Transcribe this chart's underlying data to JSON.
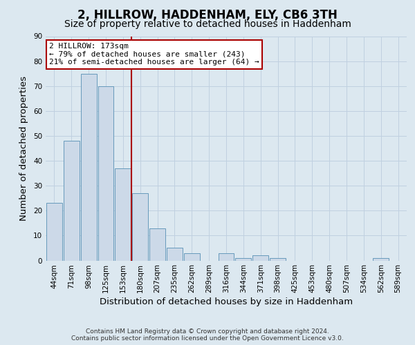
{
  "title": "2, HILLROW, HADDENHAM, ELY, CB6 3TH",
  "subtitle": "Size of property relative to detached houses in Haddenham",
  "xlabel": "Distribution of detached houses by size in Haddenham",
  "ylabel": "Number of detached properties",
  "bar_labels": [
    "44sqm",
    "71sqm",
    "98sqm",
    "125sqm",
    "153sqm",
    "180sqm",
    "207sqm",
    "235sqm",
    "262sqm",
    "289sqm",
    "316sqm",
    "344sqm",
    "371sqm",
    "398sqm",
    "425sqm",
    "453sqm",
    "480sqm",
    "507sqm",
    "534sqm",
    "562sqm",
    "589sqm"
  ],
  "bar_values": [
    23,
    48,
    75,
    70,
    37,
    27,
    13,
    5,
    3,
    0,
    3,
    1,
    2,
    1,
    0,
    0,
    0,
    0,
    0,
    1,
    0
  ],
  "bar_color": "#ccd9e8",
  "bar_edge_color": "#6699bb",
  "marker_line_color": "#aa0000",
  "annotation_text_line1": "2 HILLROW: 173sqm",
  "annotation_text_line2": "← 79% of detached houses are smaller (243)",
  "annotation_text_line3": "21% of semi-detached houses are larger (64) →",
  "annotation_box_color": "#ffffff",
  "annotation_box_edge": "#aa0000",
  "ylim": [
    0,
    90
  ],
  "yticks": [
    0,
    10,
    20,
    30,
    40,
    50,
    60,
    70,
    80,
    90
  ],
  "footer_line1": "Contains HM Land Registry data © Crown copyright and database right 2024.",
  "footer_line2": "Contains public sector information licensed under the Open Government Licence v3.0.",
  "background_color": "#dce8f0",
  "grid_color": "#c0d0e0",
  "title_fontsize": 12,
  "subtitle_fontsize": 10,
  "axis_label_fontsize": 9.5,
  "tick_fontsize": 7.5,
  "footer_fontsize": 6.5,
  "annotation_fontsize": 8,
  "red_line_x": 4.5
}
